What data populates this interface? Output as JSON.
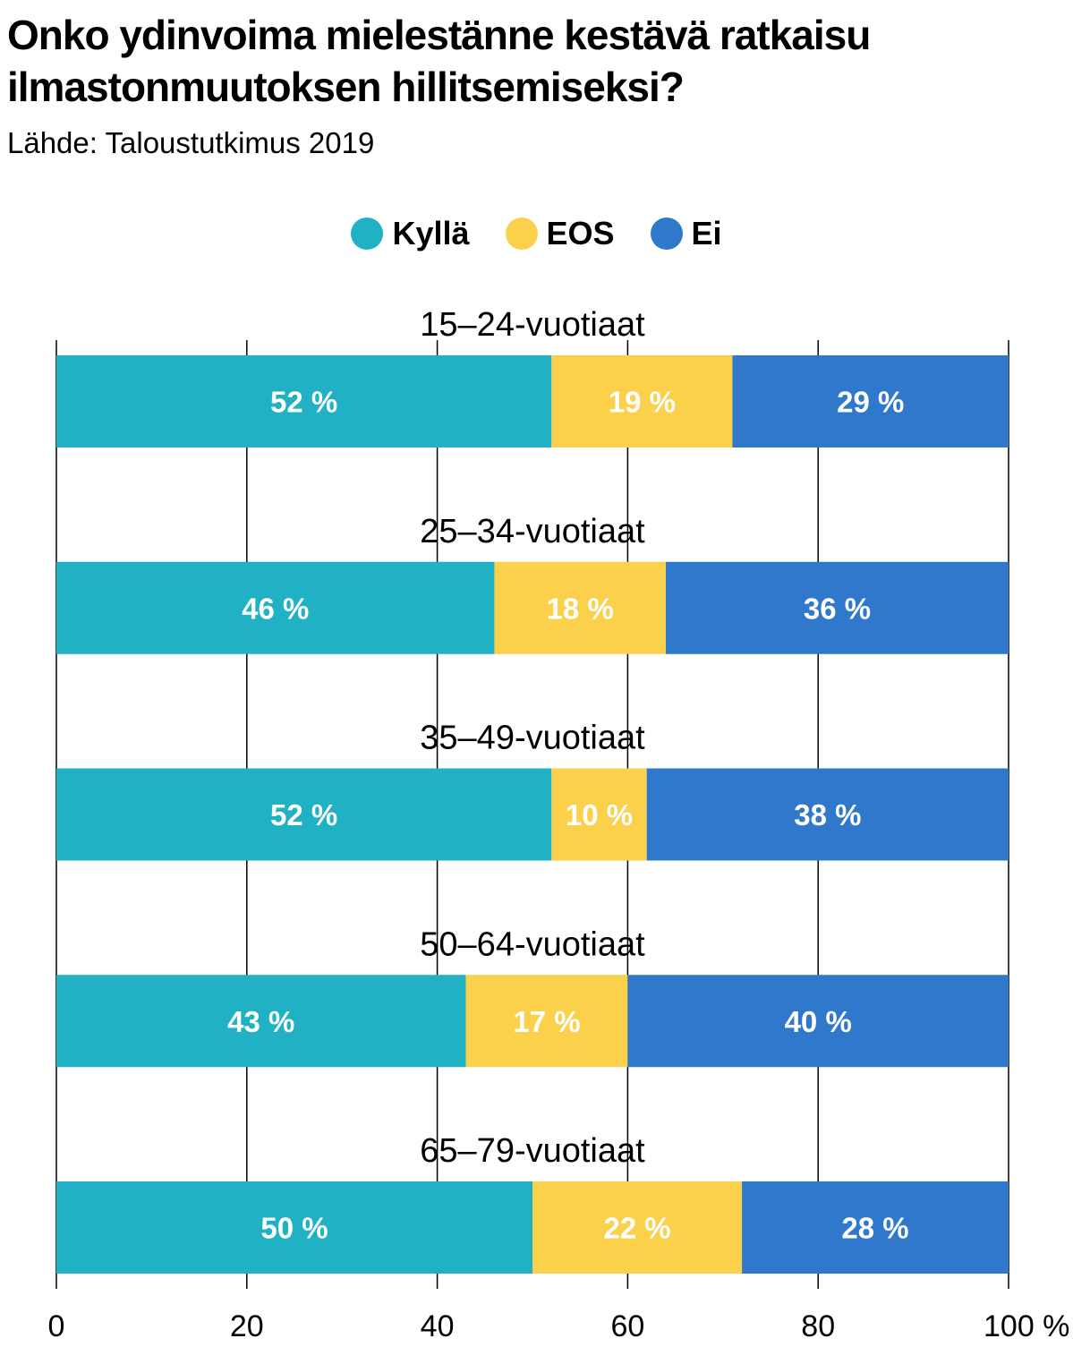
{
  "title_lines": [
    "Onko ydinvoima mielestänne kestävä ratkaisu",
    "ilmastonmuutoksen hillitsemiseksi?"
  ],
  "subtitle": "Lähde: Taloustutkimus 2019",
  "colors": {
    "kylla": "#20B2C4",
    "eos": "#FBD04B",
    "ei": "#3078CC"
  },
  "chart_data": {
    "type": "bar",
    "orientation": "horizontal-stacked",
    "title": "Onko ydinvoima mielestänne kestävä ratkaisu ilmastonmuutoksen hillitsemiseksi?",
    "subtitle": "Lähde: Taloustutkimus 2019",
    "categories": [
      "15–24-vuotiaat",
      "25–34-vuotiaat",
      "35–49-vuotiaat",
      "50–64-vuotiaat",
      "65–79-vuotiaat"
    ],
    "series": [
      {
        "name": "Kyllä",
        "color": "#20B2C4",
        "values": [
          52,
          46,
          52,
          43,
          50
        ],
        "labels": [
          "52 %",
          "46 %",
          "52 %",
          "43 %",
          "50 %"
        ]
      },
      {
        "name": "EOS",
        "color": "#FBD04B",
        "values": [
          19,
          18,
          10,
          17,
          22
        ],
        "labels": [
          "19 %",
          "18 %",
          "10 %",
          "17 %",
          "22 %"
        ]
      },
      {
        "name": "Ei",
        "color": "#3078CC",
        "values": [
          29,
          36,
          38,
          40,
          28
        ],
        "labels": [
          "29 %",
          "36 %",
          "38 %",
          "40 %",
          "28 %"
        ]
      }
    ],
    "xlim": [
      0,
      100
    ],
    "xticks": [
      0,
      20,
      40,
      60,
      80,
      100
    ],
    "xtick_labels": [
      "0",
      "20",
      "40",
      "60",
      "80",
      "100 %"
    ],
    "xlabel": "",
    "ylabel": "",
    "grid": "vertical",
    "legend_position": "top-center"
  }
}
